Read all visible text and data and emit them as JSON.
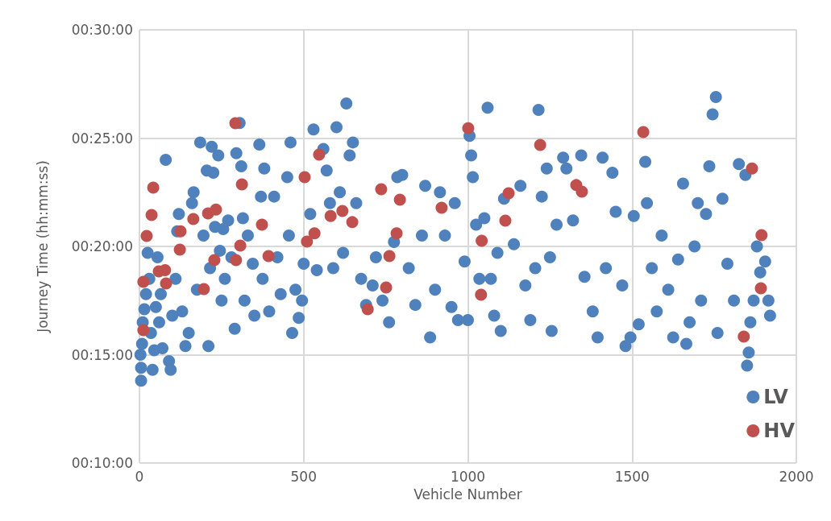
{
  "chart_data": {
    "type": "scatter",
    "xlabel": "Vehicle Number",
    "ylabel": "Journey Time (hh:mm:ss)",
    "xlim": [
      0,
      2000
    ],
    "xticks": [
      0,
      500,
      1000,
      1500,
      2000
    ],
    "ylim": [
      10,
      30
    ],
    "yticks": [
      {
        "value": 10,
        "label": "00:10:00"
      },
      {
        "value": 15,
        "label": "00:15:00"
      },
      {
        "value": 20,
        "label": "00:20:00"
      },
      {
        "value": 25,
        "label": "00:25:00"
      },
      {
        "value": 30,
        "label": "00:30:00"
      }
    ],
    "grid": true,
    "legend": "bottom right",
    "marker": "circle",
    "series": [
      {
        "name": "LV",
        "color": "#4f81bd",
        "x": [
          5,
          5,
          3,
          8,
          10,
          15,
          20,
          25,
          30,
          35,
          40,
          45,
          50,
          55,
          60,
          65,
          70,
          80,
          90,
          95,
          100,
          110,
          115,
          120,
          130,
          140,
          150,
          160,
          165,
          175,
          185,
          195,
          205,
          210,
          215,
          220,
          225,
          230,
          240,
          245,
          250,
          255,
          260,
          270,
          280,
          290,
          295,
          305,
          310,
          315,
          320,
          330,
          345,
          350,
          365,
          370,
          375,
          380,
          395,
          410,
          420,
          430,
          450,
          455,
          460,
          465,
          475,
          485,
          495,
          500,
          520,
          530,
          540,
          560,
          570,
          580,
          590,
          600,
          610,
          620,
          630,
          640,
          650,
          660,
          675,
          690,
          710,
          720,
          740,
          760,
          775,
          785,
          800,
          820,
          840,
          860,
          870,
          885,
          900,
          915,
          930,
          950,
          960,
          970,
          990,
          1000,
          1005,
          1010,
          1015,
          1025,
          1035,
          1050,
          1060,
          1070,
          1080,
          1090,
          1100,
          1110,
          1140,
          1160,
          1175,
          1190,
          1205,
          1215,
          1225,
          1240,
          1250,
          1255,
          1270,
          1290,
          1300,
          1320,
          1345,
          1355,
          1380,
          1395,
          1410,
          1420,
          1440,
          1450,
          1470,
          1480,
          1495,
          1505,
          1520,
          1540,
          1545,
          1560,
          1575,
          1590,
          1610,
          1625,
          1640,
          1655,
          1665,
          1675,
          1690,
          1700,
          1710,
          1725,
          1735,
          1745,
          1755,
          1760,
          1775,
          1790,
          1810,
          1825,
          1845,
          1850,
          1855,
          1860,
          1870,
          1880,
          1890,
          1905,
          1915,
          1920
        ],
        "values": [
          13.8,
          14.4,
          15,
          15.5,
          16.5,
          17.1,
          17.8,
          19.7,
          18.5,
          16,
          14.3,
          15.2,
          17.2,
          19.5,
          16.5,
          17.8,
          15.3,
          24,
          14.7,
          14.3,
          16.8,
          18.5,
          20.7,
          21.5,
          17,
          15.4,
          16,
          22,
          22.5,
          18,
          24.8,
          20.5,
          23.5,
          15.4,
          19,
          24.6,
          23.4,
          20.9,
          24.2,
          19.8,
          17.5,
          20.8,
          18.5,
          21.2,
          19.5,
          16.2,
          24.3,
          25.7,
          23.7,
          21.3,
          17.5,
          20.5,
          19.2,
          16.8,
          24.7,
          22.3,
          18.5,
          23.6,
          17,
          22.3,
          19.5,
          17.8,
          23.2,
          20.5,
          24.8,
          16,
          18,
          16.7,
          17.5,
          19.2,
          21.5,
          25.4,
          18.9,
          24.5,
          23.5,
          22,
          19,
          25.5,
          22.5,
          19.7,
          26.6,
          24.2,
          24.8,
          22,
          18.5,
          17.3,
          18.2,
          19.5,
          17.5,
          16.5,
          20.2,
          23.2,
          23.3,
          19,
          17.3,
          20.5,
          22.8,
          15.8,
          18,
          22.5,
          20.5,
          17.2,
          22,
          16.6,
          19.3,
          16.6,
          25.1,
          24.2,
          23.2,
          21,
          18.5,
          21.3,
          26.4,
          18.5,
          16.8,
          19.7,
          16.1,
          22.2,
          20.1,
          22.8,
          18.2,
          16.6,
          19,
          26.3,
          22.3,
          23.6,
          19.5,
          16.1,
          21,
          24.1,
          23.6,
          21.2,
          24.2,
          18.6,
          17,
          15.8,
          24.1,
          19,
          23.4,
          21.6,
          18.2,
          15.4,
          15.8,
          21.4,
          16.4,
          23.9,
          22,
          19,
          17,
          20.5,
          18,
          15.8,
          19.4,
          22.9,
          15.5,
          16.5,
          20,
          22,
          17.5,
          21.5,
          23.7,
          26.1,
          26.9,
          16,
          22.2,
          19.2,
          17.5,
          23.8,
          23.3,
          14.5,
          15.1,
          16.5,
          17.5,
          20,
          18.8,
          19.3,
          17.5,
          16.8
        ]
      },
      {
        "name": "HV",
        "color": "#c0504d",
        "x": [
          12,
          12,
          22,
          37,
          42,
          59,
          78,
          81,
          125,
          123,
          164,
          196,
          209,
          228,
          233,
          292,
          294,
          307,
          312,
          373,
          393,
          503,
          510,
          533,
          547,
          582,
          618,
          648,
          695,
          736,
          761,
          751,
          783,
          793,
          920,
          1001,
          1040,
          1042,
          1114,
          1124,
          1220,
          1330,
          1347,
          1534,
          1865,
          1894,
          1892,
          1840
        ],
        "values": [
          18.36,
          16.13,
          20.48,
          21.45,
          22.71,
          18.85,
          18.9,
          18.29,
          20.7,
          19.85,
          21.26,
          18.03,
          21.52,
          19.37,
          21.7,
          25.69,
          19.37,
          20.04,
          22.86,
          21.0,
          19.55,
          23.2,
          20.22,
          20.6,
          24.24,
          21.4,
          21.64,
          21.12,
          17.1,
          22.64,
          19.55,
          18.1,
          20.6,
          22.16,
          21.78,
          25.46,
          17.77,
          20.26,
          21.19,
          22.45,
          24.68,
          22.83,
          22.53,
          25.28,
          23.6,
          20.52,
          18.07,
          15.84
        ]
      }
    ]
  }
}
